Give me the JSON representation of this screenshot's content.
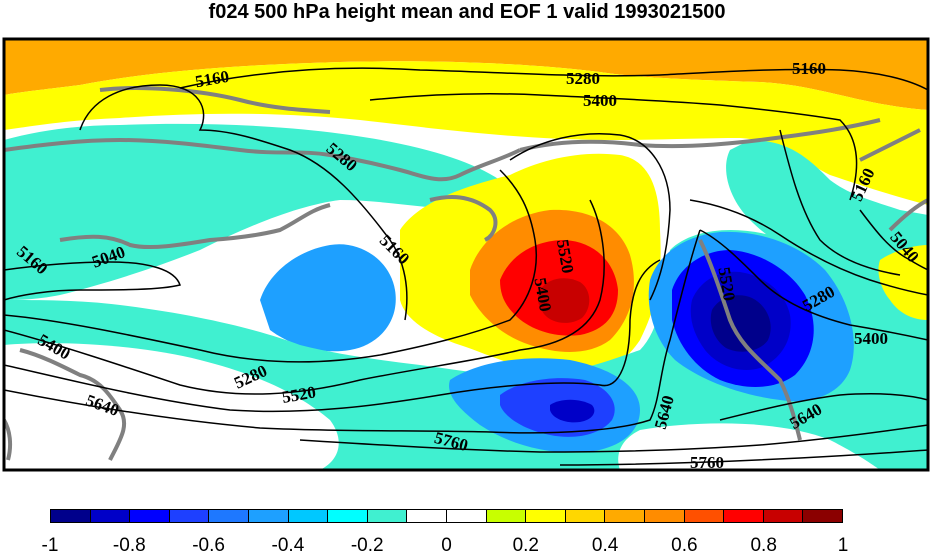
{
  "title": "f024 500 hPa height mean and EOF 1 valid 1993021500",
  "colors": {
    "ocean_background": "#ffffff",
    "coastline": "#808080",
    "contour": "#000000"
  },
  "contour_labels": [
    {
      "id": "label-5160-nw",
      "text": "5160"
    },
    {
      "id": "label-5280-top",
      "text": "5280"
    },
    {
      "id": "label-5160-ne",
      "text": "5160"
    },
    {
      "id": "label-5400-top",
      "text": "5400"
    },
    {
      "id": "label-5280-mid",
      "text": "5280"
    },
    {
      "id": "label-5040-w",
      "text": "5040"
    },
    {
      "id": "label-5160-w",
      "text": "5160"
    },
    {
      "id": "label-5160-mid",
      "text": "5160"
    },
    {
      "id": "label-5520-center",
      "text": "5520"
    },
    {
      "id": "label-5400-center",
      "text": "5400"
    },
    {
      "id": "label-5520-east",
      "text": "5520"
    },
    {
      "id": "label-5160-east",
      "text": "5160"
    },
    {
      "id": "label-5040-east",
      "text": "5040"
    },
    {
      "id": "label-5280-east",
      "text": "5280"
    },
    {
      "id": "label-5400-east",
      "text": "5400"
    },
    {
      "id": "label-5400-w",
      "text": "5400"
    },
    {
      "id": "label-5640-w",
      "text": "5640"
    },
    {
      "id": "label-5280-sw",
      "text": "5280"
    },
    {
      "id": "label-5520-s",
      "text": "5520"
    },
    {
      "id": "label-5640-center",
      "text": "5640"
    },
    {
      "id": "label-5760-s",
      "text": "5760"
    },
    {
      "id": "label-5640-east",
      "text": "5640"
    },
    {
      "id": "label-5760-se",
      "text": "5760"
    }
  ],
  "colorbar": {
    "colors": [
      "#00008b",
      "#0000c8",
      "#0000ff",
      "#1e40ff",
      "#1e78ff",
      "#1ea0ff",
      "#00c8ff",
      "#00ffff",
      "#40f0d0",
      "#ffffff",
      "#ffffff",
      "#c8ff00",
      "#ffff00",
      "#ffd700",
      "#ffaa00",
      "#ff8c00",
      "#ff5000",
      "#ff0000",
      "#c80000",
      "#8b0000"
    ],
    "tick_labels": [
      "-1",
      "-0.8",
      "-0.6",
      "-0.4",
      "-0.2",
      "0",
      "0.2",
      "0.4",
      "0.6",
      "0.8",
      "1"
    ]
  }
}
